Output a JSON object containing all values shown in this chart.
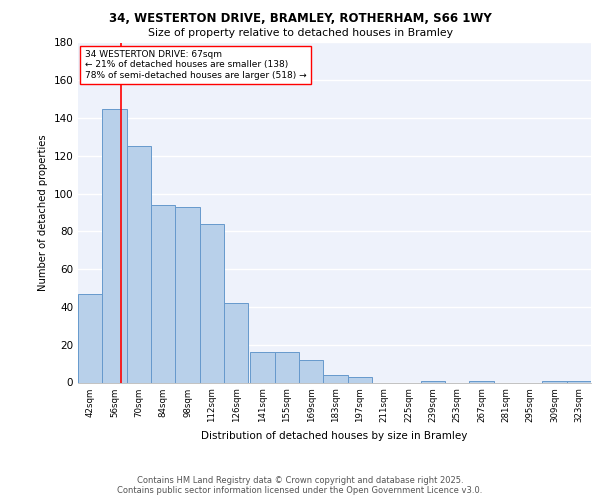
{
  "title1": "34, WESTERTON DRIVE, BRAMLEY, ROTHERHAM, S66 1WY",
  "title2": "Size of property relative to detached houses in Bramley",
  "xlabel": "Distribution of detached houses by size in Bramley",
  "ylabel": "Number of detached properties",
  "bin_labels": [
    "42sqm",
    "56sqm",
    "70sqm",
    "84sqm",
    "98sqm",
    "112sqm",
    "126sqm",
    "141sqm",
    "155sqm",
    "169sqm",
    "183sqm",
    "197sqm",
    "211sqm",
    "225sqm",
    "239sqm",
    "253sqm",
    "267sqm",
    "281sqm",
    "295sqm",
    "309sqm",
    "323sqm"
  ],
  "bin_edges": [
    42,
    56,
    70,
    84,
    98,
    112,
    126,
    141,
    155,
    169,
    183,
    197,
    211,
    225,
    239,
    253,
    267,
    281,
    295,
    309,
    323
  ],
  "bar_heights": [
    47,
    145,
    125,
    94,
    93,
    84,
    42,
    16,
    16,
    12,
    4,
    3,
    0,
    0,
    1,
    0,
    1,
    0,
    0,
    1,
    1
  ],
  "bar_color": "#b8d0ea",
  "bar_edge_color": "#6699cc",
  "property_line_x": 67,
  "property_line_color": "red",
  "annotation_text": "34 WESTERTON DRIVE: 67sqm\n← 21% of detached houses are smaller (138)\n78% of semi-detached houses are larger (518) →",
  "annotation_box_color": "white",
  "annotation_box_edge": "red",
  "ylim": [
    0,
    180
  ],
  "yticks": [
    0,
    20,
    40,
    60,
    80,
    100,
    120,
    140,
    160,
    180
  ],
  "background_color": "#eef2fb",
  "grid_color": "white",
  "footer_line1": "Contains HM Land Registry data © Crown copyright and database right 2025.",
  "footer_line2": "Contains public sector information licensed under the Open Government Licence v3.0."
}
